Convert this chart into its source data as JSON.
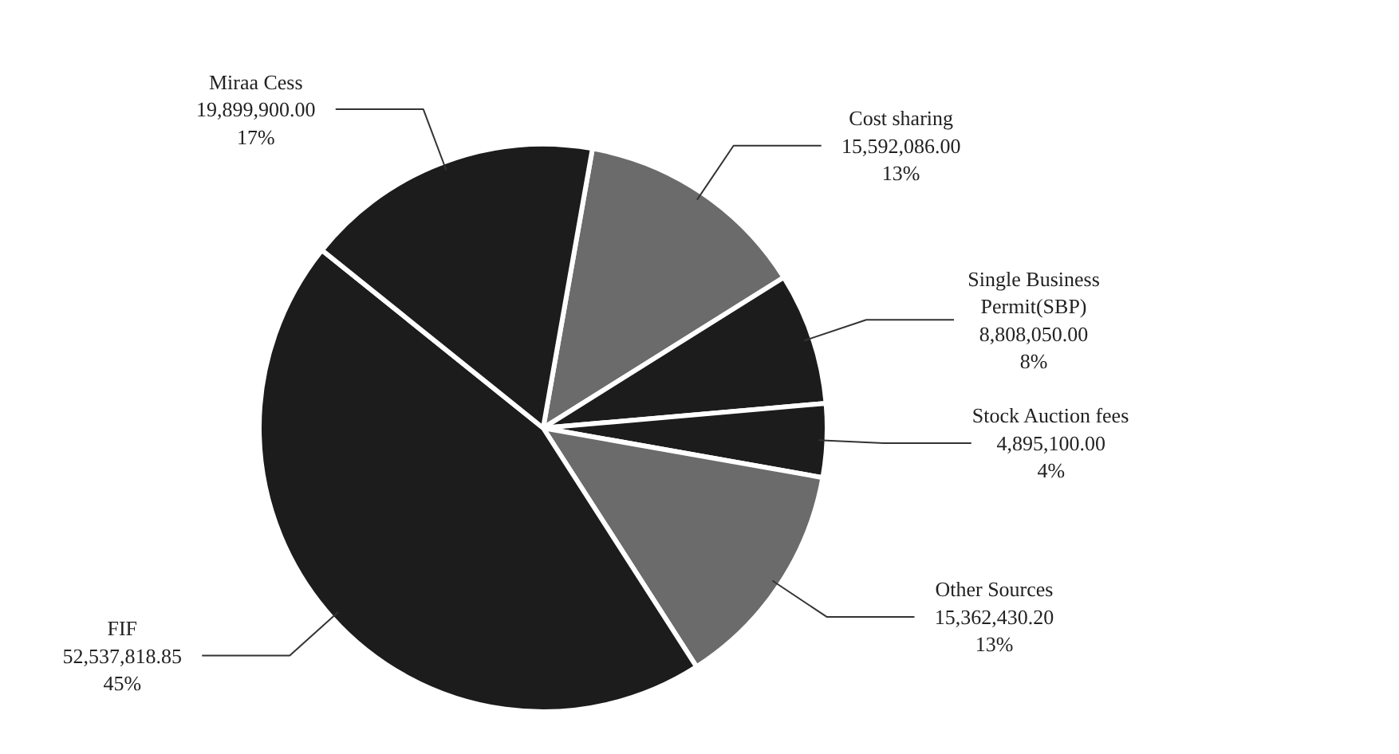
{
  "chart_data": {
    "type": "pie",
    "categories": [
      "Cost sharing",
      "Single Business Permit(SBP)",
      "Stock Auction fees",
      "Other Sources",
      "FIF",
      "Miraa Cess"
    ],
    "values": [
      15592086.0,
      8808050.0,
      4895100.0,
      15362430.2,
      52537818.85,
      19899900.0
    ],
    "value_labels": [
      "15,592,086.00\n13%",
      "8,808,050.00\n8%",
      "4,895,100.00\n4%",
      "15,362,430.20\n13%",
      "52,537,818.85\n45%",
      "19,899,900.00\n17%"
    ],
    "colors": [
      "#6b6b6b",
      "#1c1c1c",
      "#1c1c1c",
      "#6b6b6b",
      "#1c1c1c",
      "#1c1c1c"
    ]
  }
}
